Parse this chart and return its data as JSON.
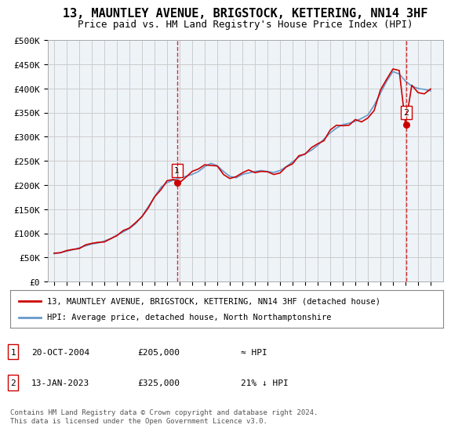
{
  "title": "13, MAUNTLEY AVENUE, BRIGSTOCK, KETTERING, NN14 3HF",
  "subtitle": "Price paid vs. HM Land Registry's House Price Index (HPI)",
  "ylabel": "",
  "ylim": [
    0,
    500000
  ],
  "yticks": [
    0,
    50000,
    100000,
    150000,
    200000,
    250000,
    300000,
    350000,
    400000,
    450000,
    500000
  ],
  "ytick_labels": [
    "£0",
    "£50K",
    "£100K",
    "£150K",
    "£200K",
    "£250K",
    "£300K",
    "£350K",
    "£400K",
    "£450K",
    "£500K"
  ],
  "sale1_date": 2004.8,
  "sale1_price": 205000,
  "sale1_label": "1",
  "sale2_date": 2023.04,
  "sale2_price": 325000,
  "sale2_label": "2",
  "sale1_info": "20-OCT-2004",
  "sale1_value": "£205,000",
  "sale1_vs_hpi": "≈ HPI",
  "sale2_info": "13-JAN-2023",
  "sale2_value": "£325,000",
  "sale2_vs_hpi": "21% ↓ HPI",
  "legend_line1": "13, MAUNTLEY AVENUE, BRIGSTOCK, KETTERING, NN14 3HF (detached house)",
  "legend_line2": "HPI: Average price, detached house, North Northamptonshire",
  "footer": "Contains HM Land Registry data © Crown copyright and database right 2024.\nThis data is licensed under the Open Government Licence v3.0.",
  "line_color": "#cc0000",
  "hpi_color": "#6699cc",
  "bg_color": "#ffffff",
  "grid_color": "#cccccc",
  "dashed_color": "#cc0000"
}
